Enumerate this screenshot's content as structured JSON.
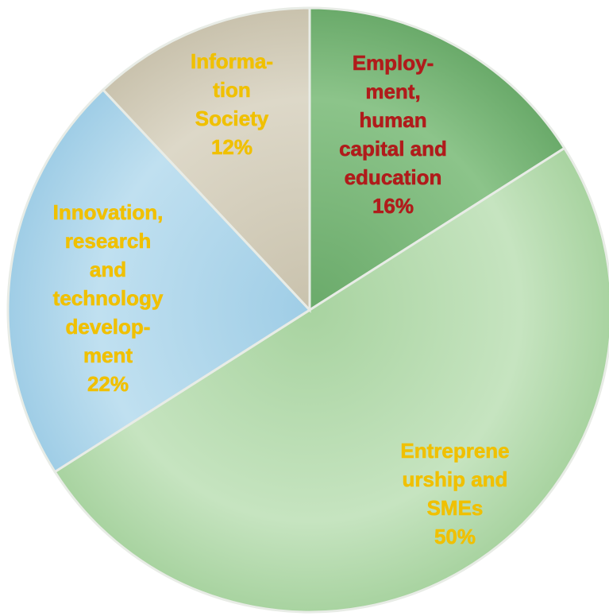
{
  "chart_data": {
    "type": "pie",
    "title": "",
    "start_angle_deg": 0,
    "direction": "clockwise",
    "slices": [
      {
        "label_lines": [
          "Employ-",
          "ment,",
          "human",
          "capital and",
          "education",
          "16%"
        ],
        "value": 16,
        "fill": "#6aaa6a",
        "fill_light": "#8cc48a",
        "text_color": "#b01b1b"
      },
      {
        "label_lines": [
          "Entreprene",
          "urship and",
          "SMEs",
          "50%"
        ],
        "value": 50,
        "fill": "#a8d3a0",
        "fill_light": "#c6e4c0",
        "text_color": "#f0c000"
      },
      {
        "label_lines": [
          "Innovation,",
          "research",
          "and",
          "technology",
          "develop-",
          "ment",
          "22%"
        ],
        "value": 22,
        "fill": "#9fcde6",
        "fill_light": "#c0e0f0",
        "text_color": "#f0c000"
      },
      {
        "label_lines": [
          "Informa-",
          "tion",
          "Society",
          "12%"
        ],
        "value": 12,
        "fill": "#c9c2ad",
        "fill_light": "#ddd8c8",
        "text_color": "#f0c000"
      }
    ]
  }
}
